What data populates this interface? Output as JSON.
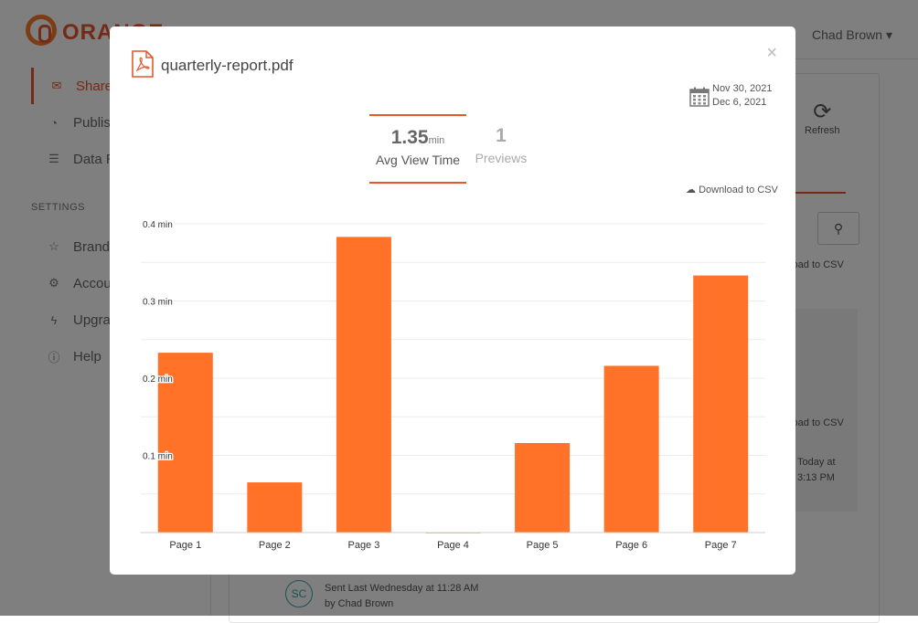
{
  "app": {
    "logo_text": "ORANGE",
    "user_name": "Chad Brown ▾",
    "sidebar": {
      "items": [
        {
          "label": "Shared",
          "icon": "envelope-icon",
          "glyph": "✉"
        },
        {
          "label": "Published",
          "icon": "rss-icon",
          "glyph": "◔"
        },
        {
          "label": "Data Rooms",
          "icon": "list-icon",
          "glyph": "☰"
        }
      ],
      "settings_heading": "SETTINGS",
      "settings_items": [
        {
          "label": "Branding",
          "icon": "star-icon",
          "glyph": "☆"
        },
        {
          "label": "Account",
          "icon": "gear-icon",
          "glyph": "⚙"
        },
        {
          "label": "Upgrade",
          "icon": "bolt-icon",
          "glyph": "ϟ"
        },
        {
          "label": "Help",
          "icon": "info-icon",
          "glyph": "ⓘ"
        }
      ]
    },
    "refresh_label": "Refresh",
    "csv_label_1": "nload to CSV",
    "csv_label_2": "nload to CSV",
    "today_line1": "Today at",
    "today_line2": "3:13 PM",
    "doc_line1": "Sent Last Wednesday at 11:28 AM",
    "doc_line2": "by Chad Brown",
    "avatar_initials": "SC"
  },
  "modal": {
    "file_name": "quarterly-report.pdf",
    "close_glyph": "×",
    "date_start": "Nov 30, 2021",
    "date_end": "Dec 6, 2021",
    "tabs": [
      {
        "value": "1.35",
        "unit": "min",
        "label": "Avg View Time",
        "active": true
      },
      {
        "value": "1",
        "unit": "",
        "label": "Previews",
        "active": false
      }
    ],
    "download_csv": "Download to CSV",
    "colors": {
      "accent": "#e8562a",
      "bar": "#ff7228"
    }
  },
  "chart_data": {
    "type": "bar",
    "categories": [
      "Page 1",
      "Page 2",
      "Page 3",
      "Page 4",
      "Page 5",
      "Page 6",
      "Page 7"
    ],
    "values": [
      0.233,
      0.065,
      0.383,
      0.0,
      0.116,
      0.216,
      0.333
    ],
    "ylim": [
      0,
      0.4
    ],
    "yticks": [
      0.1,
      0.2,
      0.3,
      0.4
    ],
    "ytick_labels": [
      "0.1 min",
      "0.2 min",
      "0.3 min",
      "0.4 min"
    ],
    "grid": true,
    "title": "",
    "xlabel": "",
    "ylabel": ""
  }
}
